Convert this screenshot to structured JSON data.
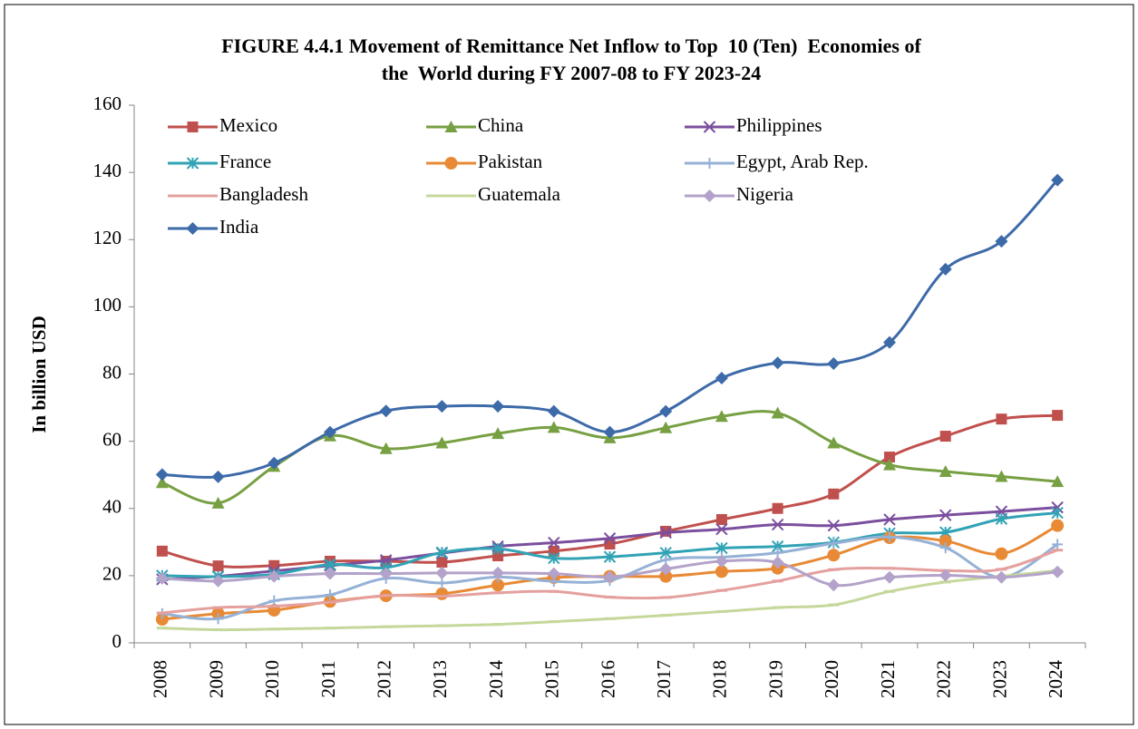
{
  "chart_data": {
    "type": "line",
    "title": [
      "FIGURE 4.4.1 Movement of Remittance Net Inflow to Top  10 (Ten)  Economies of",
      "the  World during FY 2007-08 to FY 2023-24"
    ],
    "y_label": "In billion USD",
    "categories": [
      "2008",
      "2009",
      "2010",
      "2011",
      "2012",
      "2013",
      "2014",
      "2015",
      "2016",
      "2017",
      "2018",
      "2019",
      "2020",
      "2021",
      "2022",
      "2023",
      "2024"
    ],
    "ylim": [
      0,
      160
    ],
    "yticks": [
      0,
      20,
      40,
      60,
      80,
      100,
      120,
      140,
      160
    ],
    "grid": false,
    "smooth": true,
    "legend": "top-left",
    "series": [
      {
        "name": "Mexico",
        "color": "#c0504d",
        "marker": "square",
        "values": [
          27.3,
          22.9,
          23.0,
          24.3,
          24.3,
          24.0,
          25.9,
          27.3,
          29.4,
          33.2,
          36.7,
          40.0,
          44.3,
          55.3,
          61.5,
          66.6,
          67.7
        ]
      },
      {
        "name": "China",
        "color": "#77a043",
        "marker": "triangle",
        "values": [
          47.7,
          41.6,
          52.5,
          61.6,
          57.8,
          59.5,
          62.3,
          64.1,
          61.0,
          64.0,
          67.4,
          68.4,
          59.5,
          53.0,
          51.0,
          49.5,
          48.0
        ]
      },
      {
        "name": "Philippines",
        "color": "#7b4f9e",
        "marker": "x",
        "values": [
          18.9,
          19.8,
          21.4,
          23.0,
          24.6,
          26.7,
          28.7,
          29.8,
          31.1,
          32.8,
          33.8,
          35.2,
          34.9,
          36.7,
          38.0,
          39.1,
          40.3
        ]
      },
      {
        "name": "France",
        "color": "#31a3b5",
        "marker": "asterisk",
        "values": [
          20.0,
          19.7,
          20.4,
          23.3,
          22.4,
          26.9,
          28.0,
          25.2,
          25.6,
          26.8,
          28.2,
          28.7,
          29.9,
          32.6,
          32.9,
          36.9,
          38.7
        ]
      },
      {
        "name": "Pakistan",
        "color": "#e88a35",
        "marker": "circle",
        "values": [
          7.0,
          8.7,
          9.7,
          12.3,
          14.0,
          14.6,
          17.2,
          19.4,
          19.8,
          19.8,
          21.2,
          22.2,
          26.1,
          31.3,
          30.3,
          26.5,
          34.9
        ]
      },
      {
        "name": "Egypt, Arab Rep.",
        "color": "#95b1d6",
        "marker": "plus",
        "values": [
          8.7,
          7.2,
          12.5,
          14.3,
          19.2,
          17.8,
          19.6,
          18.3,
          18.6,
          24.7,
          25.5,
          26.8,
          29.6,
          31.5,
          28.3,
          19.5,
          29.3
        ]
      },
      {
        "name": "Bangladesh",
        "color": "#e4a09e",
        "marker": "dash",
        "values": [
          8.9,
          10.5,
          10.9,
          12.1,
          14.1,
          13.9,
          14.9,
          15.3,
          13.6,
          13.5,
          15.6,
          18.4,
          21.8,
          22.2,
          21.5,
          21.9,
          27.6
        ]
      },
      {
        "name": "Guatemala",
        "color": "#c5d89b",
        "marker": "dash",
        "values": [
          4.4,
          3.9,
          4.1,
          4.4,
          4.8,
          5.1,
          5.5,
          6.3,
          7.2,
          8.2,
          9.3,
          10.5,
          11.3,
          15.3,
          18.1,
          19.8,
          21.5
        ]
      },
      {
        "name": "Nigeria",
        "color": "#b3a2c9",
        "marker": "diamond",
        "values": [
          19.2,
          18.4,
          19.8,
          20.6,
          20.6,
          20.8,
          20.8,
          20.6,
          19.6,
          22.0,
          24.3,
          23.9,
          17.2,
          19.5,
          20.1,
          19.5,
          21.1
        ]
      },
      {
        "name": "India",
        "color": "#3d6aa8",
        "marker": "diamond",
        "values": [
          50.1,
          49.4,
          53.5,
          62.7,
          69.0,
          70.4,
          70.4,
          68.9,
          62.7,
          68.9,
          78.8,
          83.3,
          83.1,
          89.4,
          111.2,
          119.5,
          137.7
        ]
      }
    ]
  }
}
